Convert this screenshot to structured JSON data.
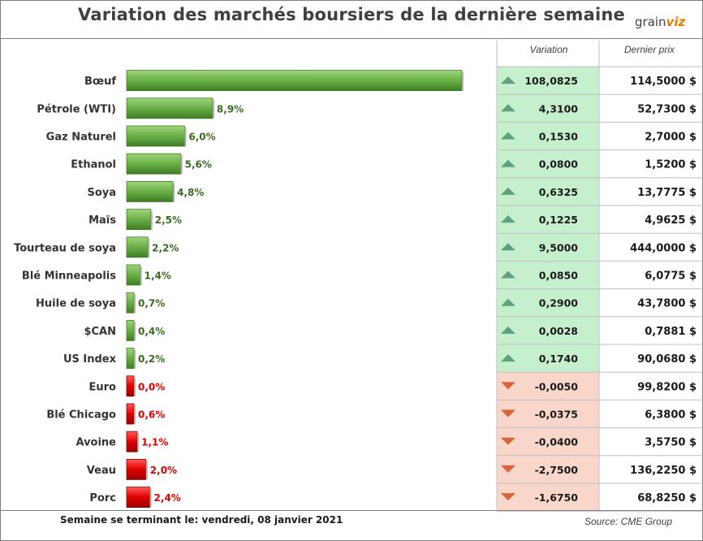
{
  "title": "Variation des marchés boursiers de la dernière semaine",
  "logo": {
    "text": "grain",
    "accent": "viz"
  },
  "columns": {
    "variation": "Variation",
    "price": "Dernier prix"
  },
  "footer": {
    "week": "Semaine se terminant le:  vendredi, 08 janvier 2021",
    "source": "Source: CME Group"
  },
  "colors": {
    "up_bar": "#6aaf46",
    "down_bar": "#e00000",
    "up_text": "#3a6b1e",
    "down_text": "#e00000",
    "up_bg": "#c6efce",
    "down_bg": "#f8d6c9",
    "up_arrow": "#5fa082",
    "down_arrow": "#d9643a"
  },
  "chart_data": {
    "type": "bar",
    "orientation": "horizontal",
    "title": "Variation des marchés boursiers de la dernière semaine",
    "categories": [
      "Bœuf",
      "Pétrole (WTI)",
      "Gaz Naturel",
      "Ethanol",
      "Soya",
      "Maïs",
      "Tourteau de soya",
      "Blé Minneapolis",
      "Huile de soya",
      "$CAN",
      "US Index",
      "Euro",
      "Blé Chicago",
      "Avoine",
      "Veau",
      "Porc"
    ],
    "values": [
      34.7,
      8.9,
      6.0,
      5.6,
      4.8,
      2.5,
      2.2,
      1.4,
      0.7,
      0.4,
      0.2,
      0.0,
      0.6,
      1.1,
      2.0,
      2.4
    ],
    "value_labels": [
      "",
      "8,9%",
      "6,0%",
      "5,6%",
      "4,8%",
      "2,5%",
      "2,2%",
      "1,4%",
      "0,7%",
      "0,4%",
      "0,2%",
      "0,0%",
      "0,6%",
      "1,1%",
      "2,0%",
      "2,4%"
    ],
    "direction": [
      "up",
      "up",
      "up",
      "up",
      "up",
      "up",
      "up",
      "up",
      "up",
      "up",
      "up",
      "down",
      "down",
      "down",
      "down",
      "down"
    ],
    "variation": [
      "108,0825",
      "4,3100",
      "0,1530",
      "0,0800",
      "0,6325",
      "0,1225",
      "9,5000",
      "0,0850",
      "0,2900",
      "0,0028",
      "0,1740",
      "-0,0050",
      "-0,0375",
      "-0,0400",
      "-2,7500",
      "-1,6750"
    ],
    "last_price": [
      "114,5000 $",
      "52,7300 $",
      "2,7000 $",
      "1,5200 $",
      "13,7775 $",
      "4,9625 $",
      "444,0000 $",
      "6,0775 $",
      "43,7800 $",
      "0,7881 $",
      "90,0680 $",
      "99,8200 $",
      "6,3800 $",
      "3,5750 $",
      "136,2250 $",
      "68,8250 $"
    ],
    "xlabel": "",
    "ylabel": ""
  }
}
